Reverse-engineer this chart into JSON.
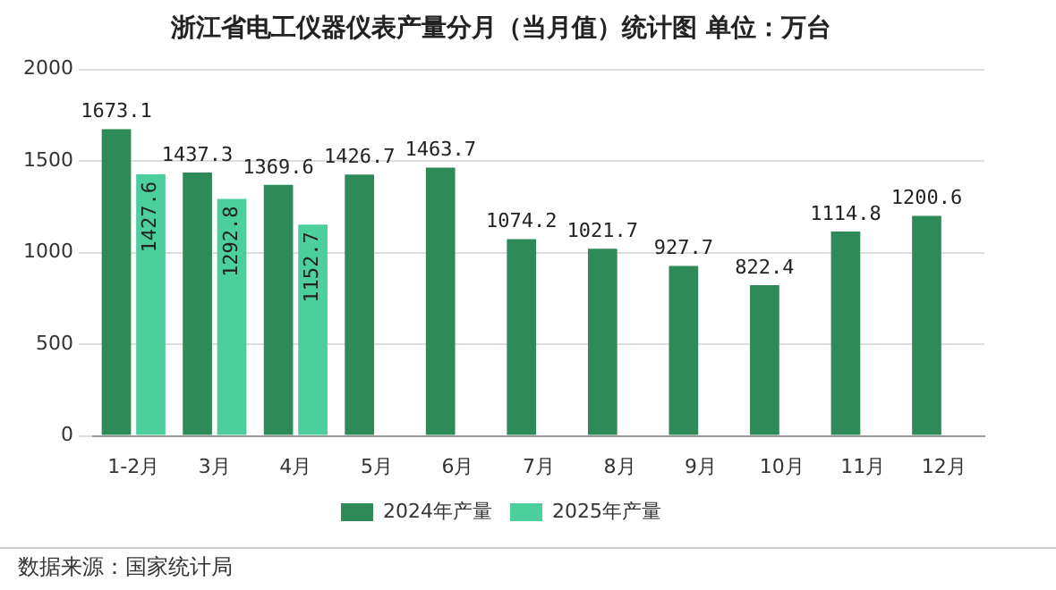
{
  "chart_data": {
    "type": "bar",
    "title": "浙江省电工仪器仪表产量分月（当月值）统计图 单位：万台",
    "categories": [
      "1-2月",
      "3月",
      "4月",
      "5月",
      "6月",
      "7月",
      "8月",
      "9月",
      "10月",
      "11月",
      "12月"
    ],
    "series": [
      {
        "name": "2024年产量",
        "color": "#2e8b57",
        "values": [
          1673.1,
          1437.3,
          1369.6,
          1426.7,
          1463.7,
          1074.2,
          1021.7,
          927.7,
          822.4,
          1114.8,
          1200.6
        ]
      },
      {
        "name": "2025年产量",
        "color": "#4ccf9c",
        "values": [
          1427.6,
          1292.8,
          1152.7,
          null,
          null,
          null,
          null,
          null,
          null,
          null,
          null
        ]
      }
    ],
    "ylim": [
      0,
      2000
    ],
    "yticks": [
      0,
      500,
      1000,
      1500,
      2000
    ],
    "grid": "y",
    "legend": "bottom",
    "data_labels": true,
    "annotations": [
      "数据来源：国家统计局"
    ]
  }
}
